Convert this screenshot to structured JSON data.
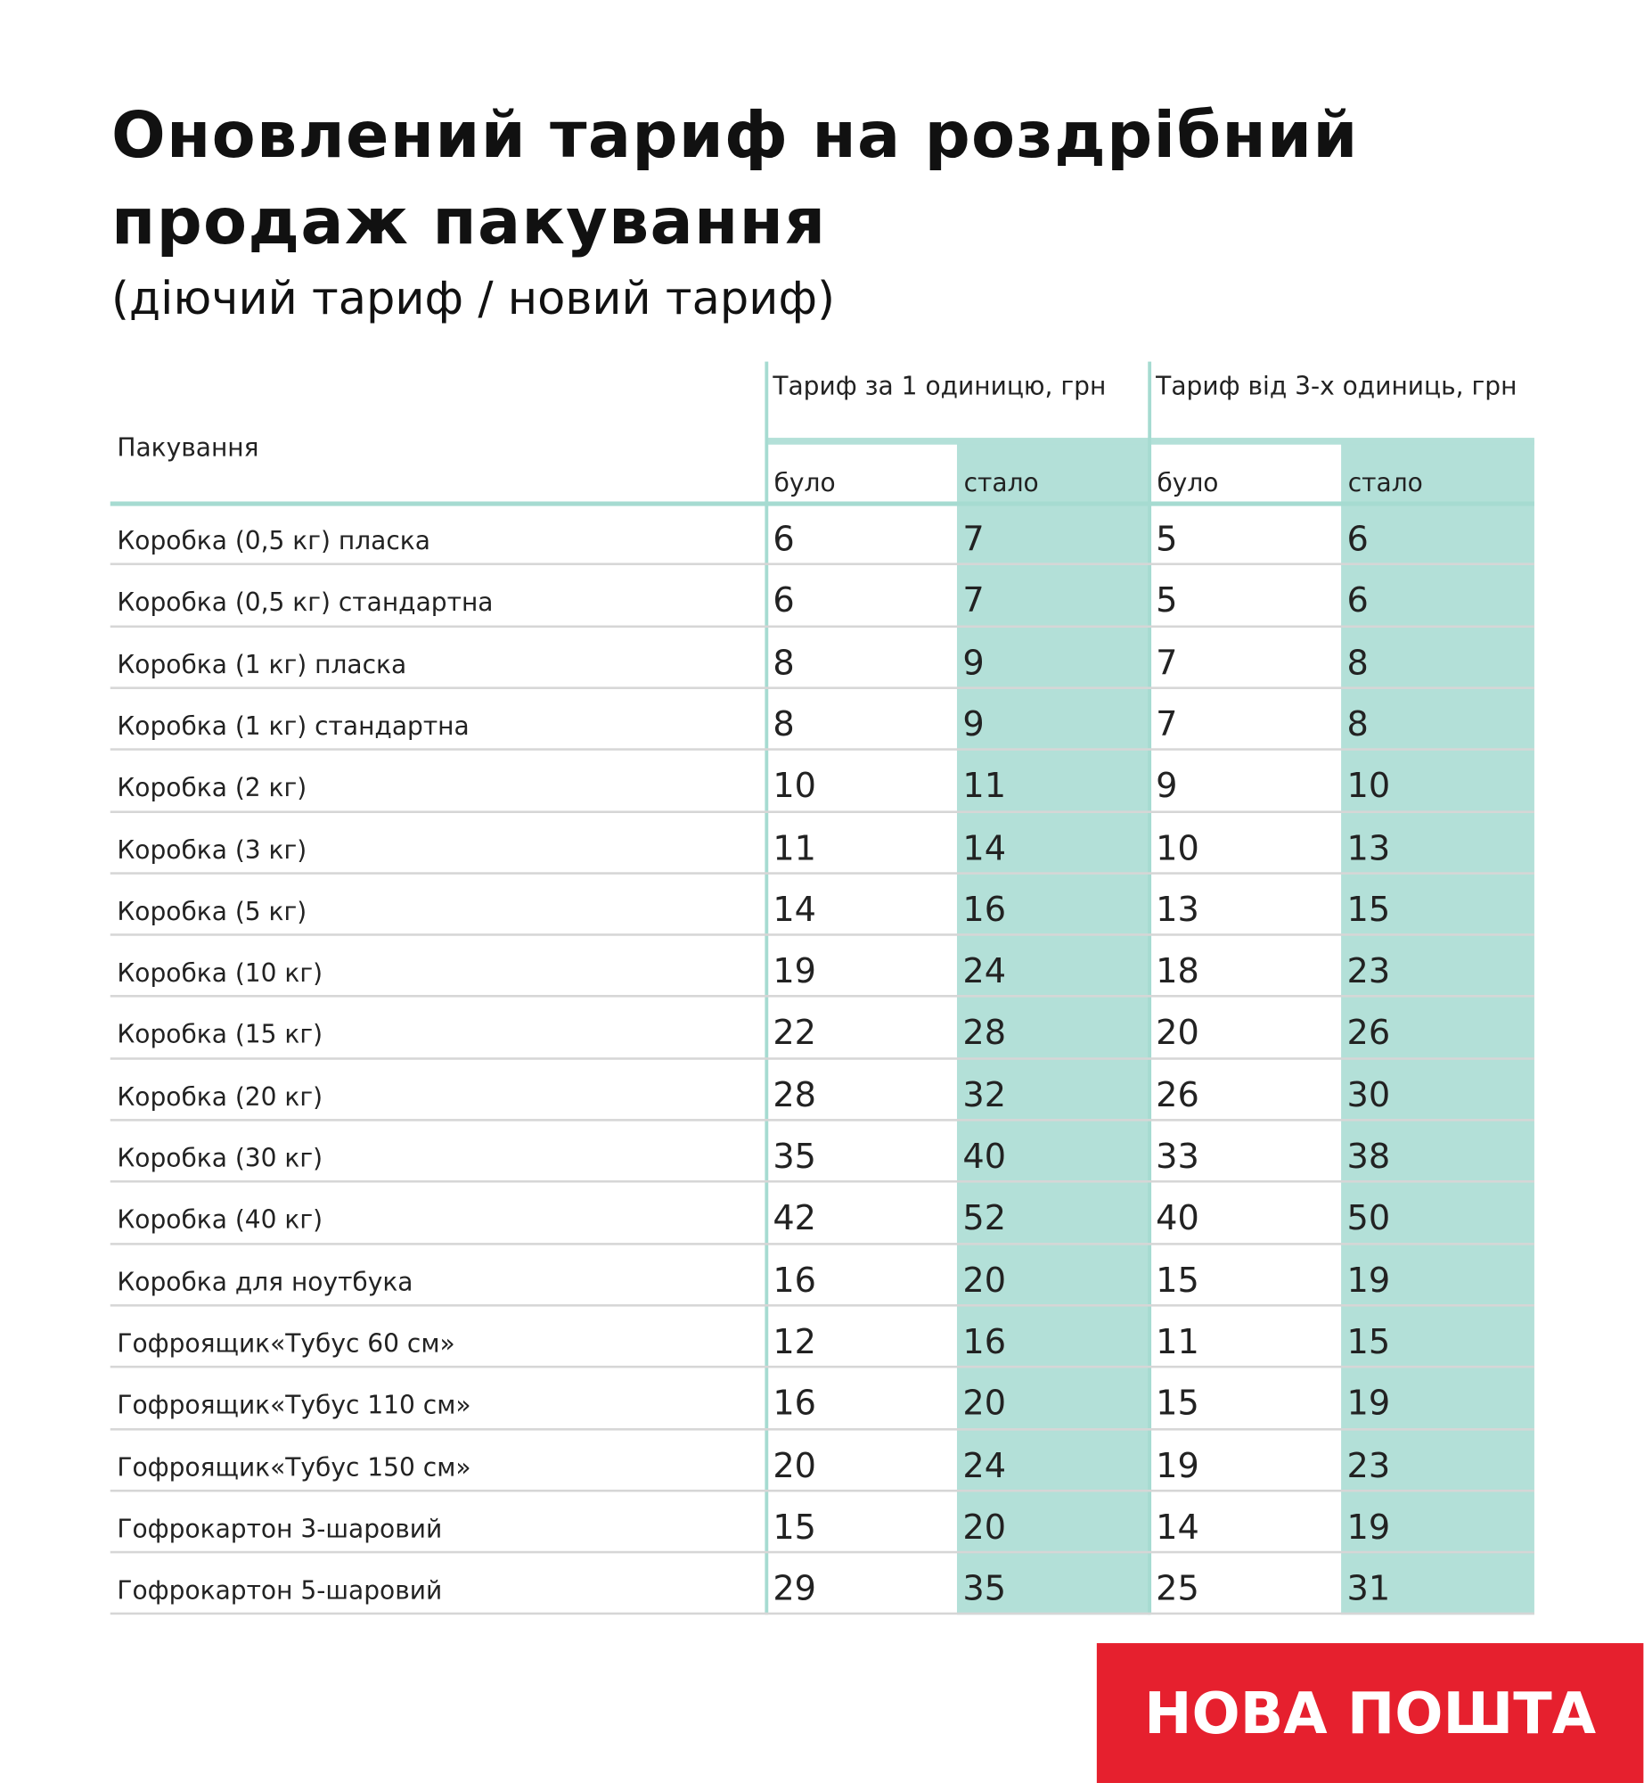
{
  "header": {
    "title": "Оновлений тариф на роздрібний продаж пакування",
    "subtitle": "(діючий тариф / новий тариф)"
  },
  "table": {
    "columns": {
      "packaging": "Пакування",
      "group1": "Тариф за 1 одиницю, грн",
      "group2": "Тариф від 3-х одиниць, грн",
      "sub": [
        "було",
        "стало",
        "було",
        "стало"
      ]
    },
    "rows": [
      [
        "Коробка (0,5 кг) пласка",
        6,
        7,
        5,
        6
      ],
      [
        "Коробка (0,5 кг) стандартна",
        6,
        7,
        5,
        6
      ],
      [
        "Коробка (1 кг) пласка",
        8,
        9,
        7,
        8
      ],
      [
        "Коробка (1 кг) стандартна",
        8,
        9,
        7,
        8
      ],
      [
        "Коробка (2 кг)",
        10,
        11,
        9,
        10
      ],
      [
        "Коробка (3 кг)",
        11,
        14,
        10,
        13
      ],
      [
        "Коробка (5 кг)",
        14,
        16,
        13,
        15
      ],
      [
        "Коробка (10 кг)",
        19,
        24,
        18,
        23
      ],
      [
        "Коробка (15 кг)",
        22,
        28,
        20,
        26
      ],
      [
        "Коробка (20 кг)",
        28,
        32,
        26,
        30
      ],
      [
        "Коробка (30 кг)",
        35,
        40,
        33,
        38
      ],
      [
        "Коробка (40 кг)",
        42,
        52,
        40,
        50
      ],
      [
        "Коробка для ноутбука",
        16,
        20,
        15,
        19
      ],
      [
        "Гофроящик«Тубус 60 см»",
        12,
        16,
        11,
        15
      ],
      [
        "Гофроящик«Тубус 110 см»",
        16,
        20,
        15,
        19
      ],
      [
        "Гофроящик«Тубус 150 см»",
        20,
        24,
        19,
        23
      ],
      [
        "Гофрокартон 3-шаровий",
        15,
        20,
        14,
        19
      ],
      [
        "Гофрокартон 5-шаровий",
        29,
        35,
        25,
        31
      ]
    ]
  },
  "footer": {
    "logo": "НОВА ПОШТА"
  }
}
